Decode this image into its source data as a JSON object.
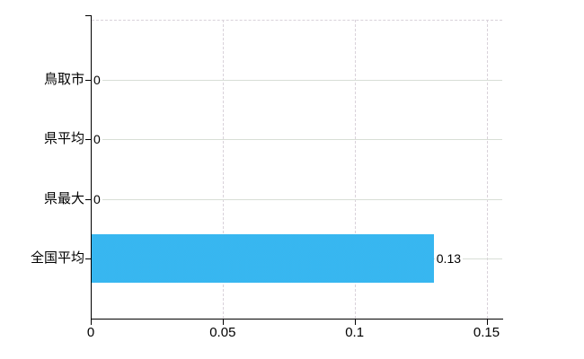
{
  "chart_data": {
    "type": "bar",
    "orientation": "horizontal",
    "categories": [
      "鳥取市",
      "県平均",
      "県最大",
      "全国平均"
    ],
    "values": [
      0,
      0,
      0,
      0.13
    ],
    "value_labels": [
      "0",
      "0",
      "0",
      "0.13"
    ],
    "x_axis": {
      "ticks": [
        0,
        0.05,
        0.1,
        0.15
      ],
      "tick_labels": [
        "0",
        "0.05",
        "0.1",
        "0.15"
      ],
      "range": [
        0,
        0.156
      ]
    },
    "grid": true,
    "legend": false
  },
  "colors": {
    "background": "#ffffff",
    "axis": "#000000",
    "bar": "#3ab5ef",
    "bar_checker": "#2ebdf6",
    "bar_base": "#41b0ea",
    "hgrid": "#d8ded6",
    "vgrid": "#d9d2da",
    "text": "#000000"
  }
}
